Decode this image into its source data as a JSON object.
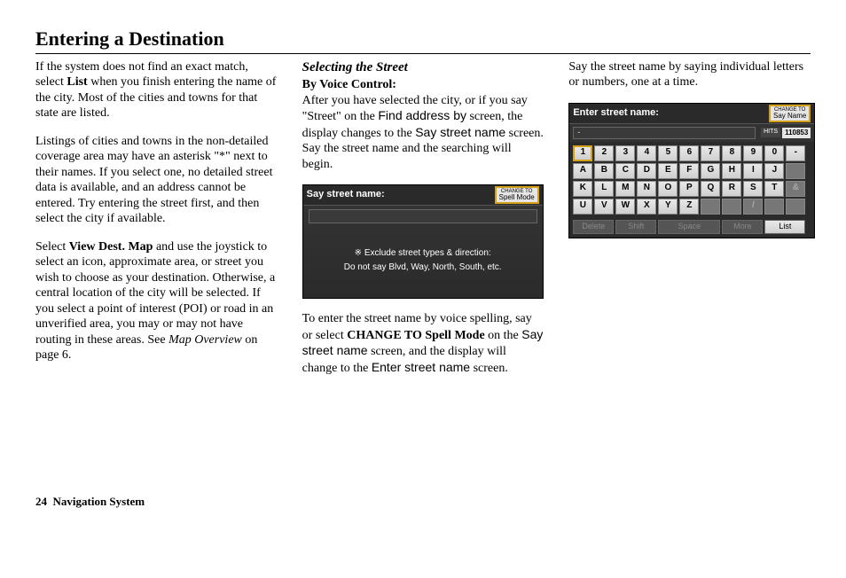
{
  "page": {
    "title": "Entering a Destination",
    "page_number": "24",
    "footer_label": "Navigation System"
  },
  "col1": {
    "p1a": "If the system does not find an exact match, select ",
    "p1_bold": "List",
    "p1b": " when you finish entering the name of the city. Most of the cities and towns for that state are listed.",
    "p2": "Listings of cities and towns in the non-detailed coverage area may have an asterisk \"*\" next to their names. If you select one, no detailed street data is available, and an address cannot be entered. Try entering the street first, and then select the city if available.",
    "p3a": "Select ",
    "p3_bold": "View Dest. Map",
    "p3b": " and use the joystick to select an icon, approximate area, or street you wish to choose as your destination. Otherwise, a central location of the city will be selected. If you select a point of interest (POI) or road in an unverified area, you may or may not have routing in these areas. See ",
    "p3_italic": "Map Overview",
    "p3c": " on page 6."
  },
  "col2": {
    "section_head": "Selecting the Street",
    "subhead": "By Voice Control:",
    "p1a": "After you have selected the city, or if you say \"Street\" on the ",
    "p1_sans1": "Find address by",
    "p1b": " screen, the display changes to the ",
    "p1_sans2": "Say street name",
    "p1c": " screen. Say the street name and the searching will begin.",
    "p2a": "To enter the street name by voice spelling, say or select ",
    "p2_bold": "CHANGE TO Spell Mode",
    "p2b": " on the ",
    "p2_sans": "Say street name",
    "p2c": " screen, and the display will change to the ",
    "p2_sans2": "Enter street name",
    "p2d": " screen."
  },
  "col3": {
    "p1": "Say the street name by saying individual letters or numbers, one at a time."
  },
  "screen1": {
    "title": "Say street name:",
    "change_pre": "CHANGE TO",
    "change_label": "Spell Mode",
    "msg1": "※ Exclude street types & direction:",
    "msg2": "Do not say Blvd, Way, North, South, etc."
  },
  "screen2": {
    "title": "Enter street name:",
    "change_pre": "CHANGE TO",
    "change_label": "Say Name",
    "cursor": "-",
    "hits_label": "HITS",
    "hits_value": "110853",
    "rows": [
      [
        "1",
        "2",
        "3",
        "4",
        "5",
        "6",
        "7",
        "8",
        "9",
        "0",
        "-"
      ],
      [
        "A",
        "B",
        "C",
        "D",
        "E",
        "F",
        "G",
        "H",
        "I",
        "J",
        ""
      ],
      [
        "K",
        "L",
        "M",
        "N",
        "O",
        "P",
        "Q",
        "R",
        "S",
        "T",
        "&"
      ],
      [
        "U",
        "V",
        "W",
        "X",
        "Y",
        "Z",
        "",
        "",
        "/",
        "",
        ""
      ]
    ],
    "row_selected": [
      0,
      0
    ],
    "dim_keys": [
      "&",
      "/"
    ],
    "bottom": {
      "delete": "Delete",
      "shift": "Shift",
      "space": "Space",
      "more": "More",
      "list": "List"
    }
  }
}
